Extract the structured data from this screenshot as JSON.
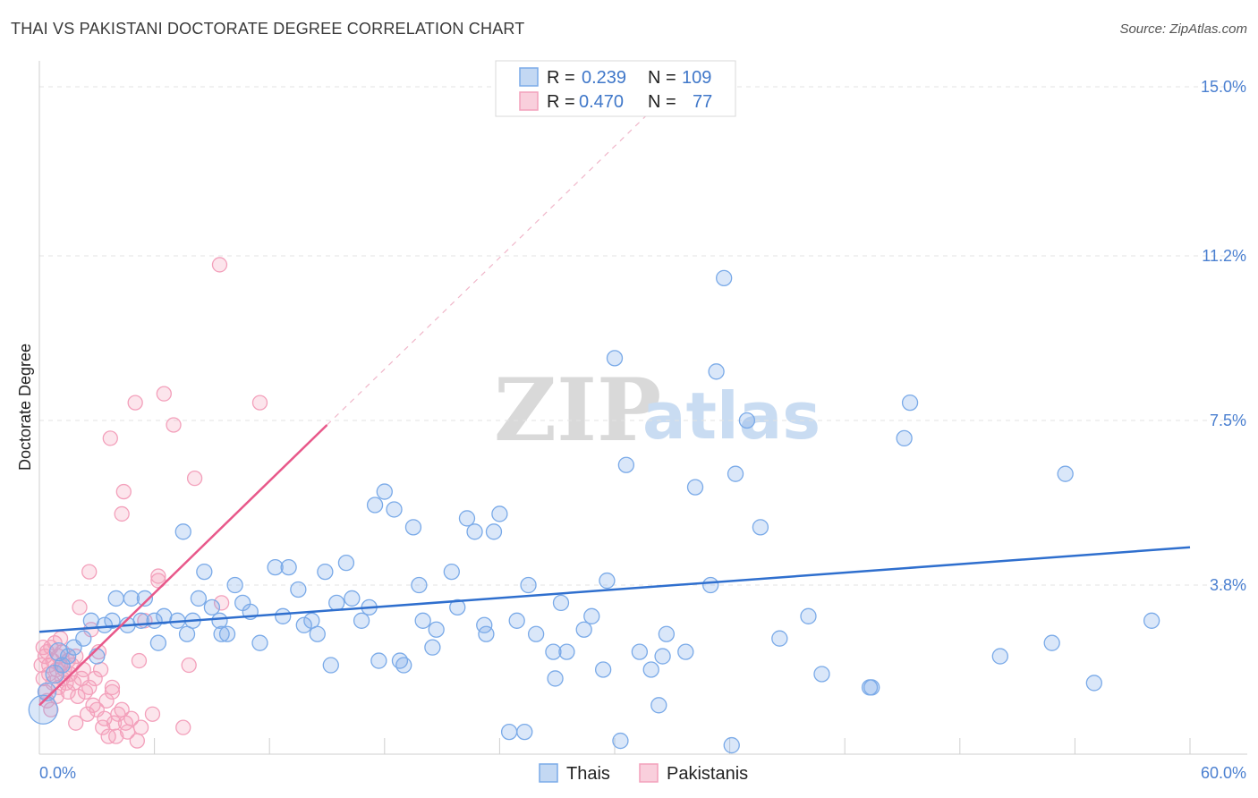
{
  "title": "THAI VS PAKISTANI DOCTORATE DEGREE CORRELATION CHART",
  "source": "Source: ZipAtlas.com",
  "watermark": {
    "zip": "ZIP",
    "atlas": "atlas"
  },
  "colors": {
    "thai": "#7aaae8",
    "thai_line": "#2f6fce",
    "pak": "#f3a0bb",
    "pak_line": "#e8588a",
    "axis_text": "#4a7fd0"
  },
  "legend": {
    "rows": [
      {
        "r_label": "R =",
        "r_value": "0.239",
        "n_label": "N =",
        "n_value": "109"
      },
      {
        "r_label": "R =",
        "r_value": "0.470",
        "n_label": "N =",
        "n_value": "77"
      }
    ]
  },
  "bottom_legend": [
    "Thais",
    "Pakistanis"
  ],
  "chart_data": {
    "type": "scatter",
    "ylabel": "Doctorate Degree",
    "xlim": [
      0,
      60
    ],
    "ylim": [
      0,
      15
    ],
    "x_tick_labels": [
      "0.0%",
      "60.0%"
    ],
    "y_tick_labels": [
      "3.8%",
      "7.5%",
      "11.2%",
      "15.0%"
    ],
    "y_tick_values": [
      3.8,
      7.5,
      11.2,
      15.0
    ],
    "grid": true,
    "legend_placement": "top-center",
    "series": [
      {
        "name": "Thais",
        "r": 0.239,
        "n": 109,
        "trend": {
          "x": [
            0,
            60
          ],
          "y": [
            2.75,
            4.65
          ]
        },
        "points": [
          [
            0.2,
            1.0
          ],
          [
            0.4,
            1.4
          ],
          [
            0.8,
            1.8
          ],
          [
            1.0,
            2.3
          ],
          [
            1.2,
            2.0
          ],
          [
            1.5,
            2.2
          ],
          [
            1.8,
            2.4
          ],
          [
            2.3,
            2.6
          ],
          [
            2.7,
            3.0
          ],
          [
            3.0,
            2.2
          ],
          [
            3.4,
            2.9
          ],
          [
            3.8,
            3.0
          ],
          [
            4.0,
            3.5
          ],
          [
            4.6,
            2.9
          ],
          [
            4.8,
            3.5
          ],
          [
            5.3,
            3.0
          ],
          [
            5.5,
            3.5
          ],
          [
            6.0,
            3.0
          ],
          [
            6.2,
            2.5
          ],
          [
            6.5,
            3.1
          ],
          [
            7.2,
            3.0
          ],
          [
            7.5,
            5.0
          ],
          [
            7.7,
            2.7
          ],
          [
            8.0,
            3.0
          ],
          [
            8.3,
            3.5
          ],
          [
            8.6,
            4.1
          ],
          [
            9.0,
            3.3
          ],
          [
            9.4,
            3.0
          ],
          [
            9.5,
            2.7
          ],
          [
            9.8,
            2.7
          ],
          [
            10.2,
            3.8
          ],
          [
            10.6,
            3.4
          ],
          [
            11.0,
            3.2
          ],
          [
            11.5,
            2.5
          ],
          [
            12.3,
            4.2
          ],
          [
            12.7,
            3.1
          ],
          [
            13.0,
            4.2
          ],
          [
            13.5,
            3.7
          ],
          [
            13.8,
            2.9
          ],
          [
            14.2,
            3.0
          ],
          [
            14.5,
            2.7
          ],
          [
            14.9,
            4.1
          ],
          [
            15.2,
            2.0
          ],
          [
            15.5,
            3.4
          ],
          [
            16.0,
            4.3
          ],
          [
            16.3,
            3.5
          ],
          [
            16.8,
            3.0
          ],
          [
            17.2,
            3.3
          ],
          [
            17.5,
            5.6
          ],
          [
            17.7,
            2.1
          ],
          [
            18.0,
            5.9
          ],
          [
            18.5,
            5.5
          ],
          [
            18.8,
            2.1
          ],
          [
            19.0,
            2.0
          ],
          [
            19.5,
            5.1
          ],
          [
            19.8,
            3.8
          ],
          [
            20.0,
            3.0
          ],
          [
            20.5,
            2.4
          ],
          [
            20.7,
            2.8
          ],
          [
            21.5,
            4.1
          ],
          [
            21.8,
            3.3
          ],
          [
            22.3,
            5.3
          ],
          [
            22.7,
            5.0
          ],
          [
            23.2,
            2.9
          ],
          [
            23.3,
            2.7
          ],
          [
            23.7,
            5.0
          ],
          [
            24.0,
            5.4
          ],
          [
            24.5,
            0.5
          ],
          [
            24.9,
            3.0
          ],
          [
            25.3,
            0.5
          ],
          [
            25.5,
            3.8
          ],
          [
            25.9,
            2.7
          ],
          [
            26.8,
            2.3
          ],
          [
            26.9,
            1.7
          ],
          [
            27.2,
            3.4
          ],
          [
            27.5,
            2.3
          ],
          [
            28.4,
            2.8
          ],
          [
            28.8,
            3.1
          ],
          [
            29.4,
            1.9
          ],
          [
            29.6,
            3.9
          ],
          [
            30.0,
            8.9
          ],
          [
            30.3,
            0.3
          ],
          [
            30.6,
            6.5
          ],
          [
            31.3,
            2.3
          ],
          [
            31.9,
            1.9
          ],
          [
            32.3,
            1.1
          ],
          [
            32.5,
            2.2
          ],
          [
            32.7,
            2.7
          ],
          [
            33.7,
            2.3
          ],
          [
            34.2,
            6.0
          ],
          [
            35.0,
            3.8
          ],
          [
            35.3,
            8.6
          ],
          [
            35.7,
            10.7
          ],
          [
            36.1,
            0.2
          ],
          [
            36.3,
            6.3
          ],
          [
            36.9,
            7.5
          ],
          [
            37.6,
            5.1
          ],
          [
            38.6,
            2.6
          ],
          [
            40.1,
            3.1
          ],
          [
            40.8,
            1.8
          ],
          [
            43.3,
            1.5
          ],
          [
            43.4,
            1.5
          ],
          [
            45.1,
            7.1
          ],
          [
            45.4,
            7.9
          ],
          [
            50.1,
            2.2
          ],
          [
            52.8,
            2.5
          ],
          [
            53.5,
            6.3
          ],
          [
            55.0,
            1.6
          ],
          [
            58.0,
            3.0
          ]
        ]
      },
      {
        "name": "Pakistanis",
        "r": 0.47,
        "n": 77,
        "trend": {
          "x": [
            0,
            15
          ],
          "y": [
            1.1,
            7.4
          ]
        },
        "trend_dashed": {
          "x": [
            15,
            32
          ],
          "y": [
            7.4,
            14.5
          ]
        },
        "points": [
          [
            0.1,
            2.0
          ],
          [
            0.2,
            1.7
          ],
          [
            0.3,
            2.2
          ],
          [
            0.3,
            1.4
          ],
          [
            0.4,
            2.3
          ],
          [
            0.5,
            2.0
          ],
          [
            0.5,
            1.8
          ],
          [
            0.6,
            2.4
          ],
          [
            0.7,
            2.1
          ],
          [
            0.7,
            1.6
          ],
          [
            0.8,
            2.5
          ],
          [
            0.9,
            1.9
          ],
          [
            1.0,
            2.2
          ],
          [
            1.0,
            1.5
          ],
          [
            1.1,
            2.0
          ],
          [
            1.2,
            1.7
          ],
          [
            1.2,
            2.3
          ],
          [
            1.3,
            1.9
          ],
          [
            1.4,
            1.6
          ],
          [
            1.5,
            2.1
          ],
          [
            1.5,
            1.4
          ],
          [
            1.6,
            1.8
          ],
          [
            1.7,
            2.0
          ],
          [
            1.8,
            1.6
          ],
          [
            1.9,
            2.2
          ],
          [
            2.0,
            1.3
          ],
          [
            2.1,
            3.3
          ],
          [
            2.2,
            1.7
          ],
          [
            2.3,
            1.9
          ],
          [
            2.4,
            1.4
          ],
          [
            2.5,
            0.9
          ],
          [
            2.6,
            4.1
          ],
          [
            2.7,
            2.8
          ],
          [
            2.8,
            1.1
          ],
          [
            2.9,
            1.7
          ],
          [
            3.0,
            1.0
          ],
          [
            3.1,
            2.3
          ],
          [
            3.2,
            1.9
          ],
          [
            3.3,
            0.6
          ],
          [
            3.4,
            0.8
          ],
          [
            3.5,
            1.2
          ],
          [
            3.6,
            0.4
          ],
          [
            3.7,
            7.1
          ],
          [
            3.8,
            1.4
          ],
          [
            3.9,
            0.7
          ],
          [
            4.0,
            0.4
          ],
          [
            4.1,
            0.9
          ],
          [
            4.3,
            5.4
          ],
          [
            4.4,
            5.9
          ],
          [
            4.5,
            0.7
          ],
          [
            4.6,
            0.5
          ],
          [
            4.8,
            0.8
          ],
          [
            5.0,
            7.9
          ],
          [
            5.1,
            0.3
          ],
          [
            5.2,
            2.1
          ],
          [
            5.3,
            0.6
          ],
          [
            5.5,
            3.0
          ],
          [
            5.9,
            0.9
          ],
          [
            6.2,
            4.0
          ],
          [
            6.5,
            8.1
          ],
          [
            7.0,
            7.4
          ],
          [
            7.5,
            0.6
          ],
          [
            7.8,
            2.0
          ],
          [
            8.1,
            6.2
          ],
          [
            9.4,
            11.0
          ],
          [
            9.5,
            3.4
          ],
          [
            11.5,
            7.9
          ],
          [
            0.9,
            1.3
          ],
          [
            1.1,
            2.6
          ],
          [
            2.6,
            1.5
          ],
          [
            0.4,
            1.2
          ],
          [
            0.2,
            2.4
          ],
          [
            0.6,
            1.0
          ],
          [
            3.8,
            1.5
          ],
          [
            4.3,
            1.0
          ],
          [
            6.2,
            3.9
          ],
          [
            1.9,
            0.7
          ]
        ]
      }
    ]
  }
}
